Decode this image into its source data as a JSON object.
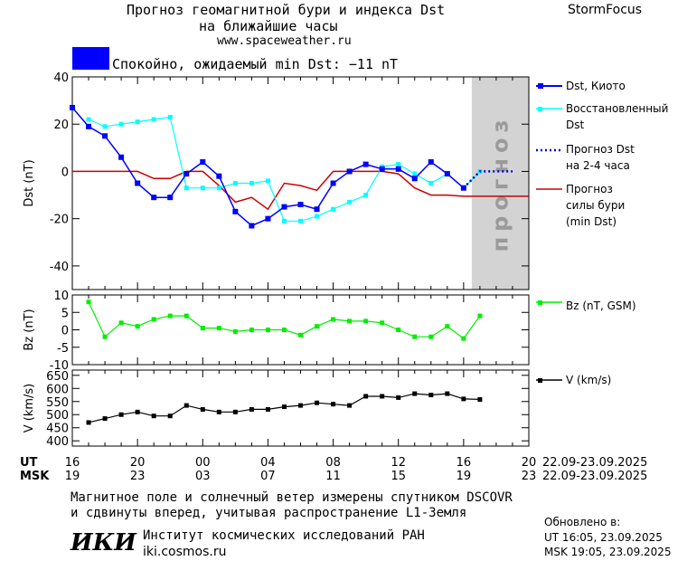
{
  "header": {
    "title_line1": "Прогноз геомагнитной бури и индекса Dst",
    "title_line2": "на ближайшие часы",
    "site": "www.spaceweather.ru",
    "brand": "StormFocus"
  },
  "status": {
    "text": "Спокойно, ожидаемый min Dst: −11 nT",
    "color": "#0000ff"
  },
  "colors": {
    "dst_kyoto": "#0000ff",
    "dst_restored": "#00ffff",
    "dst_forecast": "#0000cc",
    "storm_forecast": "#cc0000",
    "bz": "#00ee00",
    "v": "#000000",
    "forecast_zone": "#d3d3d3"
  },
  "legend": {
    "dst_kyoto": "Dst, Киото",
    "dst_restored_1": "Восстановленный",
    "dst_restored_2": "Dst",
    "dst_forecast_1": "Прогноз Dst",
    "dst_forecast_2": "на 2-4 часа",
    "storm_1": "Прогноз",
    "storm_2": "силы бури",
    "storm_3": "(min Dst)",
    "bz": "Bz (nT, GSM)",
    "v": "V (km/s)"
  },
  "forecast_zone_label": "прогноз",
  "time_axis": {
    "ut_label": "UT",
    "msk_label": "MSK",
    "ut_ticks": [
      "16",
      "20",
      "00",
      "04",
      "08",
      "12",
      "16",
      "20"
    ],
    "msk_ticks": [
      "19",
      "23",
      "03",
      "07",
      "11",
      "15",
      "19",
      "23"
    ],
    "range_ut": "22.09-23.09.2025",
    "range_msk": "22.09-23.09.2025"
  },
  "chart_data": [
    {
      "type": "line",
      "ylabel": "Dst (nT)",
      "ylim": [
        -50,
        40
      ],
      "yticks": [
        40,
        20,
        0,
        -20,
        -40
      ],
      "xlim": [
        0,
        28
      ],
      "forecast_zone": [
        24.5,
        28
      ],
      "series": [
        {
          "name": "Dst, Киото",
          "x": [
            0,
            1,
            2,
            3,
            4,
            5,
            6,
            7,
            8,
            9,
            10,
            11,
            12,
            13,
            14,
            15,
            16,
            17,
            18,
            19,
            20,
            21,
            22,
            23,
            24
          ],
          "values": [
            27,
            19,
            15,
            6,
            -5,
            -11,
            -11,
            -1,
            4,
            -2,
            -17,
            -23,
            -20,
            -15,
            -14,
            -16,
            -5,
            0,
            3,
            1,
            1,
            -3,
            4,
            -1,
            -7
          ]
        },
        {
          "name": "Восстановленный Dst",
          "x": [
            1,
            2,
            3,
            4,
            5,
            6,
            7,
            8,
            9,
            10,
            11,
            12,
            13,
            14,
            15,
            16,
            17,
            18,
            19,
            20,
            21,
            22,
            23,
            24,
            25
          ],
          "values": [
            22,
            19,
            20,
            21,
            22,
            23,
            -7,
            -7,
            -7,
            -5,
            -5,
            -4,
            -21,
            -21,
            -19,
            -16,
            -13,
            -10,
            2,
            3,
            -1,
            -5,
            -1,
            -7,
            0
          ]
        },
        {
          "name": "Прогноз Dst на 2-4 часа",
          "x": [
            24,
            25,
            26,
            27
          ],
          "values": [
            -7,
            0,
            0,
            0
          ]
        },
        {
          "name": "Прогноз силы бури (min Dst)",
          "x": [
            0,
            4,
            5,
            6,
            7,
            8,
            9,
            10,
            11,
            12,
            13,
            14,
            15,
            16,
            17,
            18,
            19,
            20,
            21,
            22,
            23,
            24,
            25,
            26,
            27,
            28
          ],
          "values": [
            0,
            0,
            -3,
            -3,
            0,
            0,
            -6,
            -13,
            -11,
            -16,
            -5,
            -6,
            -8,
            0,
            0,
            0,
            0,
            -1,
            -7,
            -10,
            -10,
            -10.5,
            -10.5,
            -10.5,
            -10.5,
            -10.5
          ]
        }
      ]
    },
    {
      "type": "line",
      "ylabel": "Bz (nT)",
      "ylim": [
        -10,
        10
      ],
      "yticks": [
        10,
        5,
        0,
        -5,
        -10
      ],
      "xlim": [
        0,
        28
      ],
      "series": [
        {
          "name": "Bz (nT, GSM)",
          "x": [
            1,
            2,
            3,
            4,
            5,
            6,
            7,
            8,
            9,
            10,
            11,
            12,
            13,
            14,
            15,
            16,
            17,
            18,
            19,
            20,
            21,
            22,
            23,
            24,
            25
          ],
          "values": [
            8,
            -2,
            2,
            1,
            3,
            4,
            4,
            0.5,
            0.5,
            -0.5,
            0,
            0,
            0,
            -1.5,
            1,
            3,
            2.5,
            2.5,
            2,
            0,
            -2,
            -2,
            1,
            -2.5,
            4
          ]
        }
      ]
    },
    {
      "type": "line",
      "ylabel": "V (km/s)",
      "ylim": [
        380,
        670
      ],
      "yticks": [
        650,
        600,
        550,
        500,
        450,
        400
      ],
      "xlim": [
        0,
        28
      ],
      "series": [
        {
          "name": "V (km/s)",
          "x": [
            1,
            2,
            3,
            4,
            5,
            6,
            7,
            8,
            9,
            10,
            11,
            12,
            13,
            14,
            15,
            16,
            17,
            18,
            19,
            20,
            21,
            22,
            23,
            24,
            25
          ],
          "values": [
            470,
            485,
            500,
            510,
            495,
            495,
            535,
            520,
            510,
            510,
            520,
            520,
            530,
            535,
            545,
            540,
            535,
            570,
            570,
            565,
            580,
            575,
            580,
            560,
            558
          ]
        }
      ]
    }
  ],
  "footer": {
    "line1": "Магнитное поле и солнечный ветер измерены спутником DSCOVR",
    "line2": "и сдвинуты вперед, учитывая распространение L1-Земля",
    "logo": "ИКИ",
    "institute": "Институт космических исследований РАН",
    "site": "iki.cosmos.ru",
    "updated_label": "Обновлено в:",
    "updated_ut": "UT  16:05, 23.09.2025",
    "updated_msk": "MSK 19:05, 23.09.2025"
  }
}
